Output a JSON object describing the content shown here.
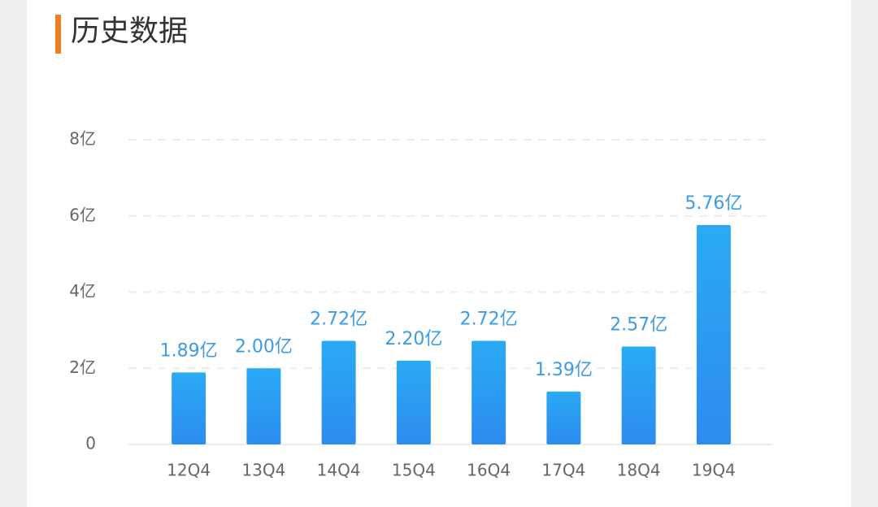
{
  "chart_data": {
    "type": "bar",
    "title": "历史数据",
    "categories": [
      "12Q4",
      "13Q4",
      "14Q4",
      "15Q4",
      "16Q4",
      "17Q4",
      "18Q4",
      "19Q4"
    ],
    "values": [
      1.89,
      2.0,
      2.72,
      2.2,
      2.72,
      1.39,
      2.57,
      5.76
    ],
    "value_labels": [
      "1.89亿",
      "2.00亿",
      "2.72亿",
      "2.20亿",
      "2.72亿",
      "1.39亿",
      "2.57亿",
      "5.76亿"
    ],
    "color": "#2a9cf2",
    "ylim": [
      0,
      8
    ],
    "yticks": [
      0,
      {
        "value": 2,
        "label": "2亿"
      },
      {
        "value": 4,
        "label": "4亿"
      },
      {
        "value": 6,
        "label": "6亿"
      },
      {
        "value": 8,
        "label": "8亿"
      }
    ],
    "grid": true
  }
}
